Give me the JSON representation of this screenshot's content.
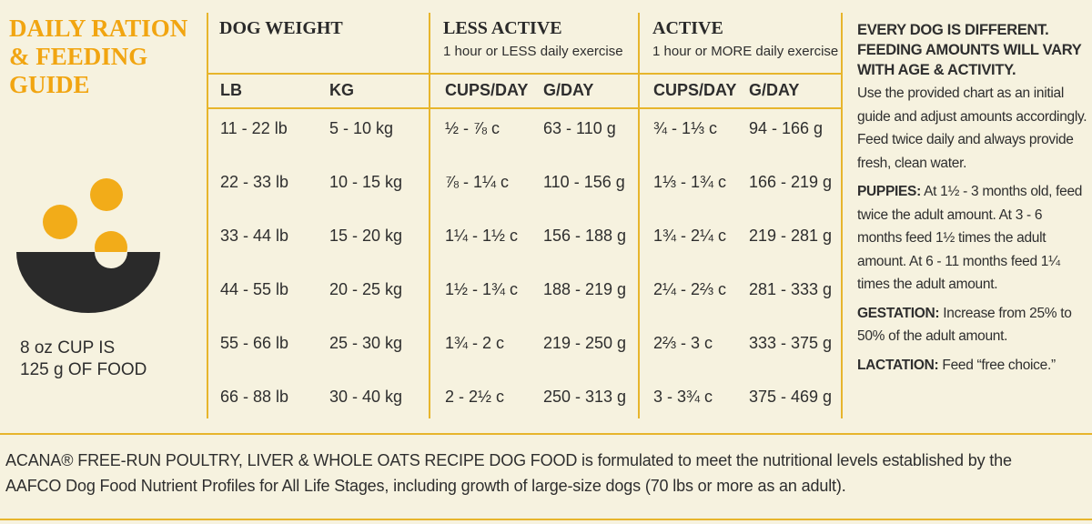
{
  "sidebar": {
    "title": "DAILY RATION & FEEDING GUIDE",
    "cup_note": [
      "8 oz CUP IS",
      "125 g OF FOOD"
    ]
  },
  "table": {
    "groups": [
      {
        "title": "DOG WEIGHT",
        "subtitle": null
      },
      {
        "title": "LESS ACTIVE",
        "subtitle": "1 hour or LESS daily exercise"
      },
      {
        "title": "ACTIVE",
        "subtitle": "1 hour or MORE daily exercise"
      }
    ],
    "columns": [
      "LB",
      "KG",
      "CUPS/DAY",
      "G/DAY",
      "CUPS/DAY",
      "G/DAY"
    ],
    "rows": [
      [
        "11 - 22 lb",
        "5 - 10 kg",
        "½ - ⅞ c",
        "63 - 110 g",
        "¾ - 1⅓ c",
        "94 - 166 g"
      ],
      [
        "22 - 33 lb",
        "10 - 15 kg",
        "⅞ - 1¼ c",
        "110 - 156 g",
        "1⅓ - 1¾ c",
        "166 - 219 g"
      ],
      [
        "33 - 44 lb",
        "15 - 20 kg",
        "1¼ - 1½ c",
        "156 - 188 g",
        "1¾ - 2¼ c",
        "219 - 281 g"
      ],
      [
        "44 - 55 lb",
        "20 - 25 kg",
        "1½ - 1¾ c",
        "188 - 219 g",
        "2¼ - 2⅔ c",
        "281 - 333 g"
      ],
      [
        "55 - 66 lb",
        "25 - 30 kg",
        "1¾ - 2 c",
        "219 - 250 g",
        "2⅔ - 3 c",
        "333 - 375 g"
      ],
      [
        "66 - 88 lb",
        "30 - 40 kg",
        "2 - 2½ c",
        "250 - 313 g",
        "3 - 3¾ c",
        "375 - 469 g"
      ]
    ]
  },
  "notes": {
    "heading": "EVERY DOG IS DIFFERENT. FEEDING AMOUNTS WILL VARY WITH AGE & ACTIVITY.",
    "intro": "Use the provided chart as an initial guide and adjust amounts accordingly. Feed twice daily and always provide fresh, clean water.",
    "items": [
      {
        "label": "PUPPIES:",
        "text": "At 1½ - 3 months old, feed twice the adult amount. At 3 - 6 months feed 1½ times the adult amount. At 6 - 11 months feed 1¼ times the adult amount."
      },
      {
        "label": "GESTATION:",
        "text": "Increase from 25% to 50% of the adult amount."
      },
      {
        "label": "LACTATION:",
        "text": "Feed “free choice.”"
      }
    ]
  },
  "footer": [
    "ACANA® FREE-RUN POULTRY, LIVER & WHOLE OATS RECIPE DOG FOOD is formulated to meet the nutritional levels established by the",
    "AAFCO Dog Food Nutrient Profiles for All Life Stages, including growth of large-size dogs (70 lbs or more as an adult)."
  ]
}
